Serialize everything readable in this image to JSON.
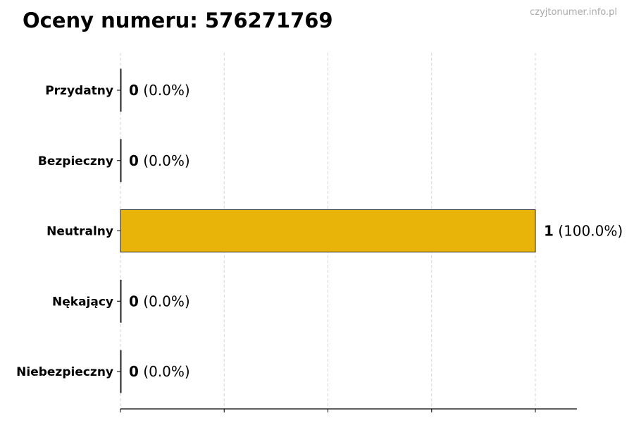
{
  "title": "Oceny numeru: 576271769",
  "watermark": "czyjtonumer.info.pl",
  "chart_data": {
    "type": "bar",
    "orientation": "horizontal",
    "title": "Oceny numeru: 576271769",
    "categories": [
      "Przydatny",
      "Bezpieczny",
      "Neutralny",
      "Nękający",
      "Niebezpieczny"
    ],
    "values": [
      0,
      0,
      1,
      0,
      0
    ],
    "value_labels": [
      "0",
      "0",
      "1",
      "0",
      "0"
    ],
    "percent_labels": [
      "(0.0%)",
      "(0.0%)",
      "(100.0%)",
      "(0.0%)",
      "(0.0%)"
    ],
    "colors": [
      "#7f7f7f",
      "#7f7f7f",
      "#e8b40a",
      "#7f7f7f",
      "#7f7f7f"
    ],
    "xlim": [
      0,
      1.1
    ],
    "xticks": [
      0,
      0.25,
      0.5,
      0.75,
      1.0
    ],
    "xtick_labels_visible": false,
    "grid": "x, dashed",
    "xlabel": "",
    "ylabel": ""
  }
}
